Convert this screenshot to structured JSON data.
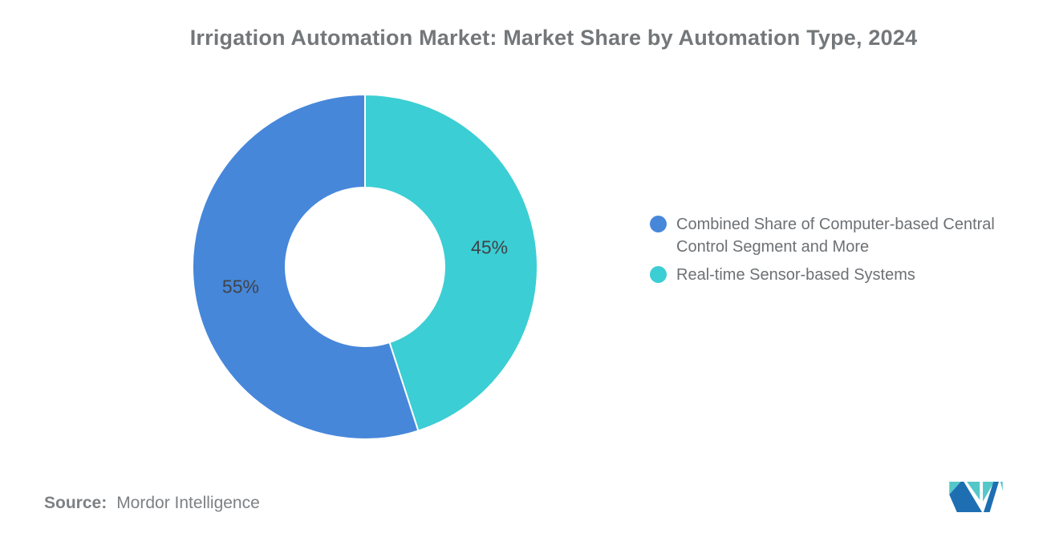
{
  "title": "Irrigation Automation Market: Market Share by Automation Type, 2024",
  "source": {
    "label": "Source:",
    "value": "Mordor Intelligence"
  },
  "logo": {
    "name": "mordor-intelligence-logo",
    "dark_blue": "#1E6FB2",
    "teal": "#55C7C9"
  },
  "chart_data": {
    "type": "pie",
    "donut": true,
    "title": "Irrigation Automation Market: Market Share by Automation Type, 2024",
    "legend_position": "right",
    "start_angle_deg": 162,
    "inner_radius_ratio": 0.46,
    "slices": [
      {
        "label": "Combined Share of Computer-based Central Control Segment and More",
        "value": 55,
        "display": "55%",
        "color": "#4687DA"
      },
      {
        "label": "Real-time Sensor-based Systems",
        "value": 45,
        "display": "45%",
        "color": "#3BCED4"
      }
    ],
    "label_color": "#3f4347",
    "title_color": "#73777a"
  }
}
